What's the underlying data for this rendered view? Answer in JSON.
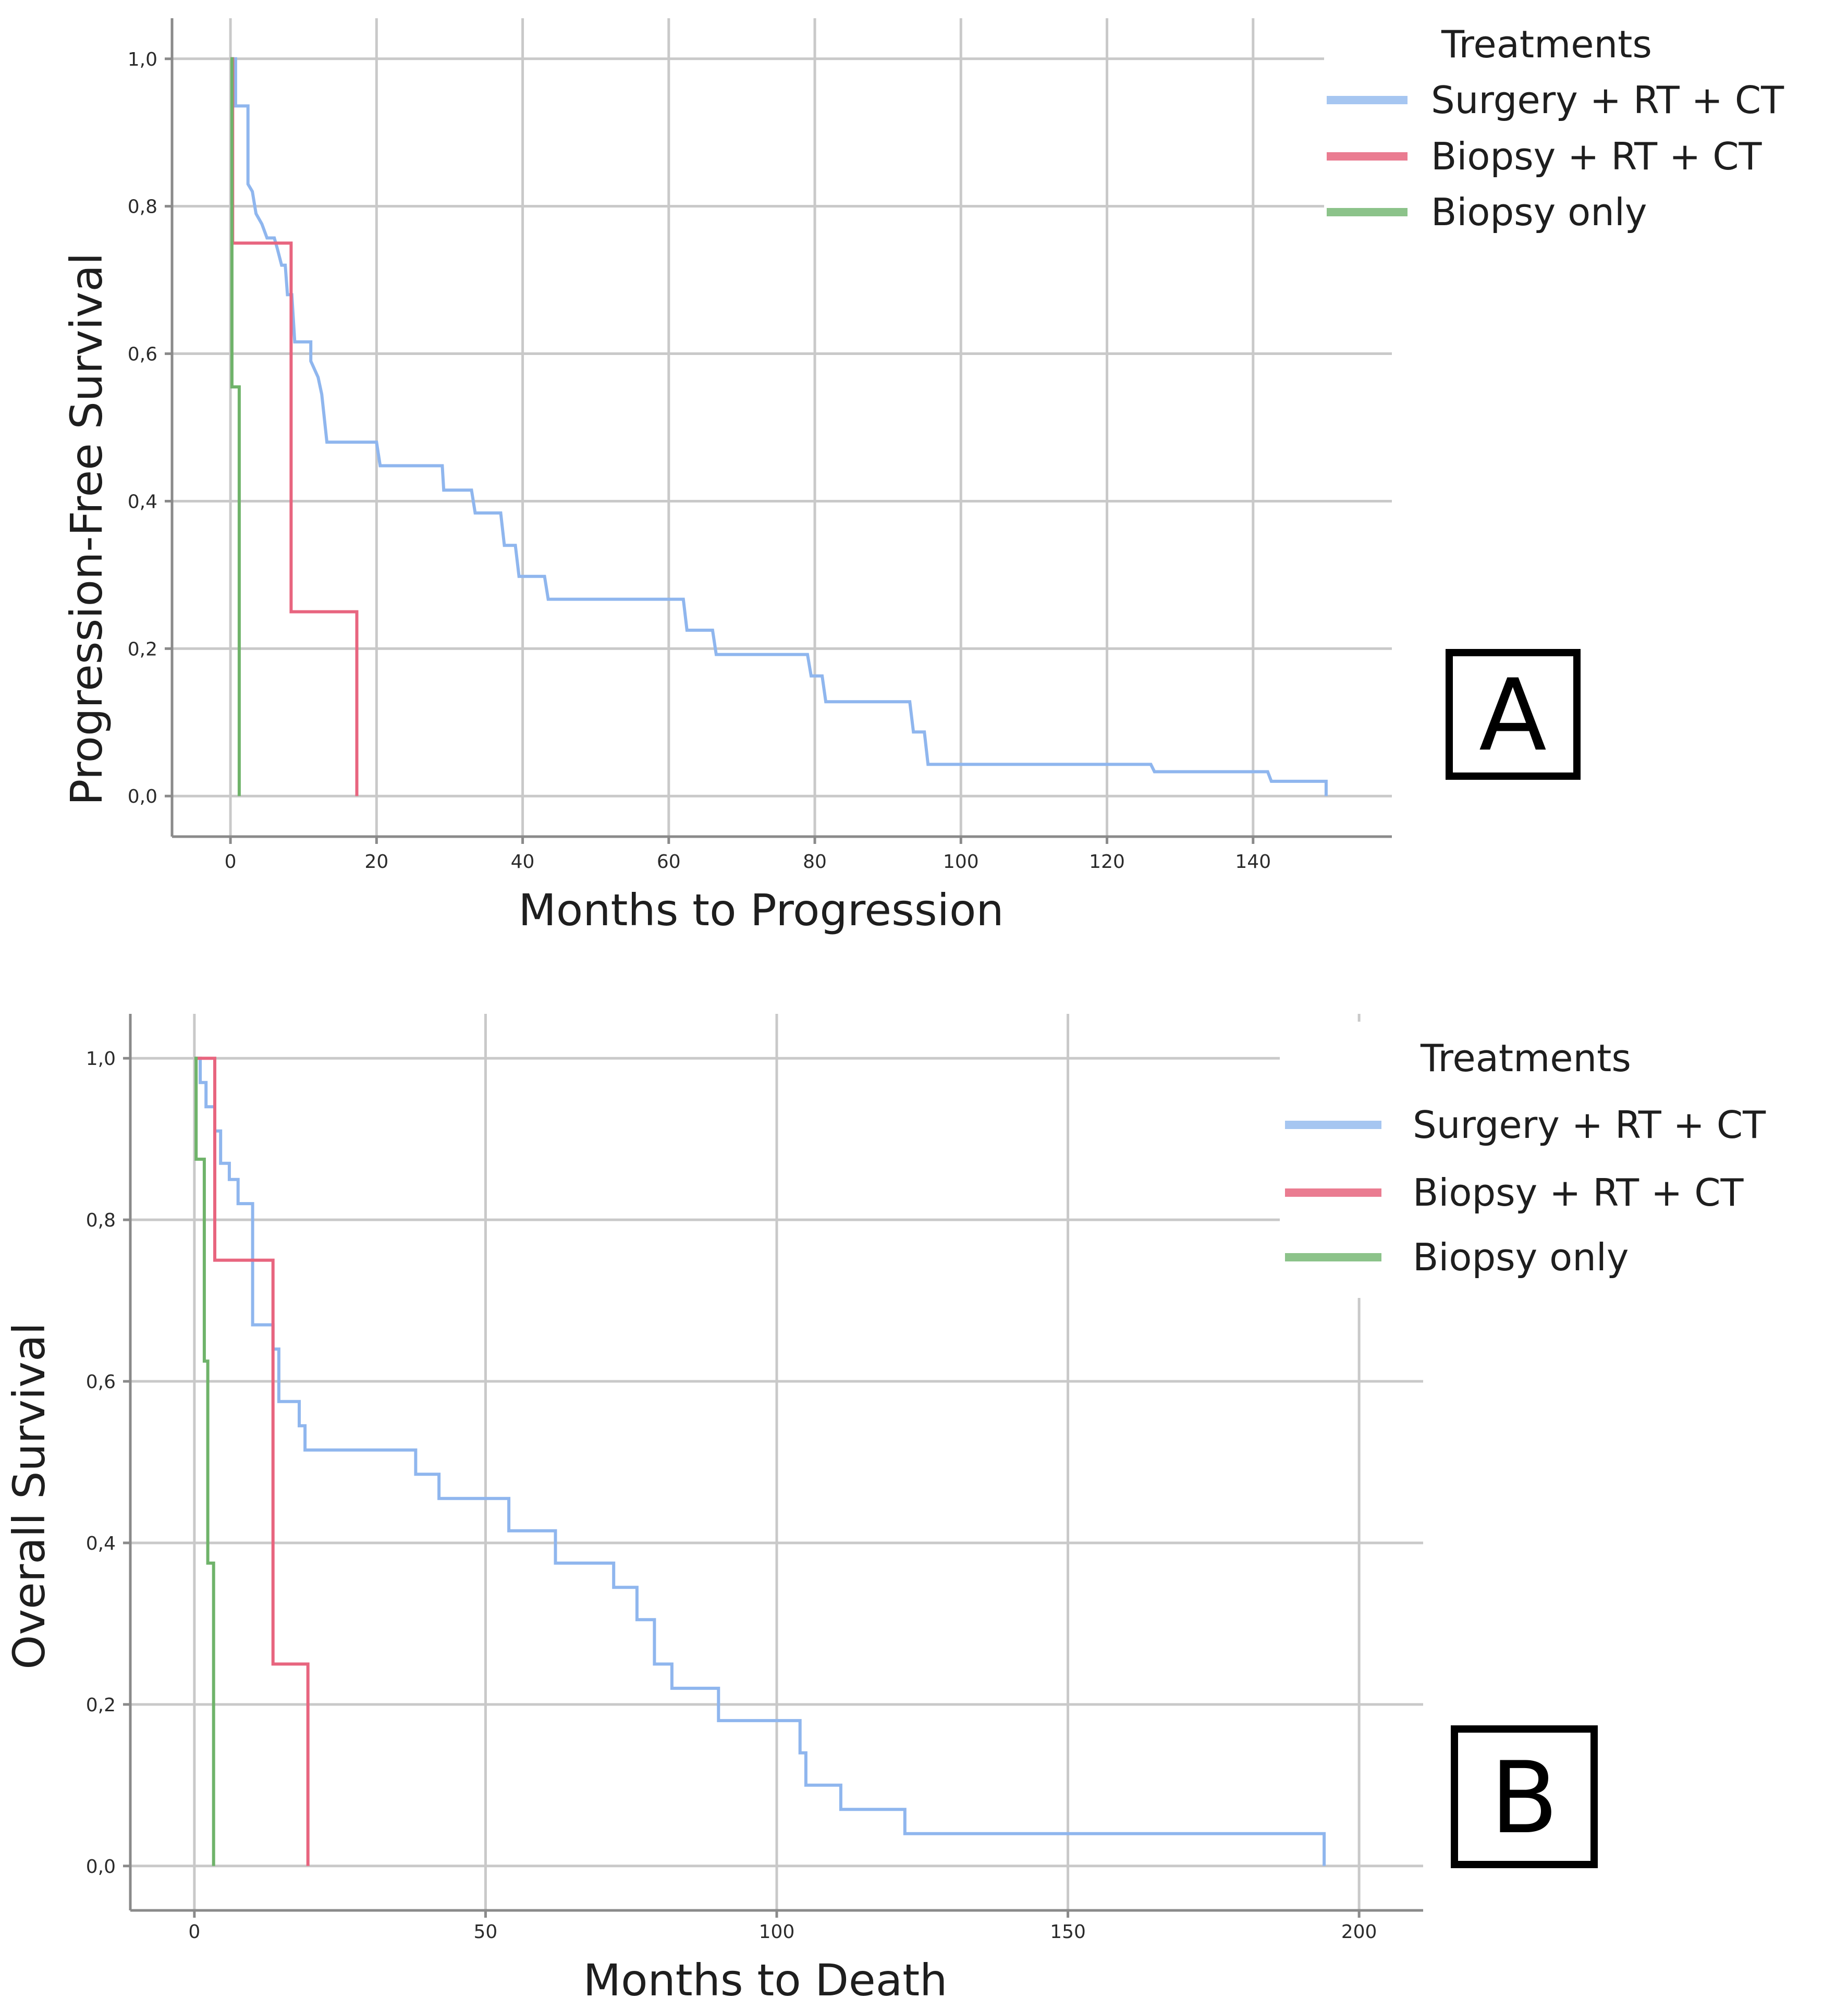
{
  "chart_data": [
    {
      "type": "line",
      "step": true,
      "panel_label": "A",
      "xlabel": "Months to Progression",
      "ylabel": "Progression-Free Survival",
      "xlim": [
        -8,
        159
      ],
      "ylim": [
        -0.055,
        1.055
      ],
      "x_ticks": [
        0,
        20,
        40,
        60,
        80,
        100,
        120,
        140
      ],
      "x_tick_labels": [
        "0",
        "20",
        "40",
        "60",
        "80",
        "100",
        "120",
        "140"
      ],
      "y_ticks": [
        0,
        0.2,
        0.4,
        0.6,
        0.8,
        1.0
      ],
      "y_tick_labels": [
        "0,0",
        "0,2",
        "0,4",
        "0,6",
        "0,8",
        "1,0"
      ],
      "x_grid": [
        0,
        20,
        40,
        60,
        80,
        100,
        120,
        140
      ],
      "y_grid": [
        0,
        0.2,
        0.4,
        0.6,
        0.8,
        1.0
      ],
      "legend": {
        "title": "Treatments",
        "placement": "top-right",
        "entries": [
          "Surgery + RT + CT",
          "Biopsy + RT + CT",
          "Biopsy only"
        ]
      },
      "series": [
        {
          "name": "Surgery + RT + CT",
          "color": "#8fb6ee",
          "points": [
            [
              0,
              1.0
            ],
            [
              0.7,
              1.0
            ],
            [
              0.7,
              0.936
            ],
            [
              2.4,
              0.936
            ],
            [
              2.4,
              0.83
            ],
            [
              3,
              0.82
            ],
            [
              3.5,
              0.79
            ],
            [
              4.3,
              0.776
            ],
            [
              5,
              0.757
            ],
            [
              6,
              0.757
            ],
            [
              6.4,
              0.743
            ],
            [
              7,
              0.72
            ],
            [
              7.5,
              0.72
            ],
            [
              7.8,
              0.68
            ],
            [
              8.4,
              0.68
            ],
            [
              8.8,
              0.616
            ],
            [
              11,
              0.616
            ],
            [
              11,
              0.59
            ],
            [
              12,
              0.568
            ],
            [
              12.5,
              0.545
            ],
            [
              13.2,
              0.48
            ],
            [
              20,
              0.48
            ],
            [
              20.5,
              0.448
            ],
            [
              29,
              0.448
            ],
            [
              29.2,
              0.415
            ],
            [
              33,
              0.415
            ],
            [
              33.5,
              0.384
            ],
            [
              37,
              0.384
            ],
            [
              37.5,
              0.34
            ],
            [
              39,
              0.34
            ],
            [
              39.5,
              0.298
            ],
            [
              43,
              0.298
            ],
            [
              43.5,
              0.267
            ],
            [
              62,
              0.267
            ],
            [
              62.5,
              0.225
            ],
            [
              66,
              0.225
            ],
            [
              66.5,
              0.192
            ],
            [
              79,
              0.192
            ],
            [
              79.5,
              0.163
            ],
            [
              81,
              0.163
            ],
            [
              81.5,
              0.128
            ],
            [
              93,
              0.128
            ],
            [
              93.5,
              0.087
            ],
            [
              95,
              0.087
            ],
            [
              95.5,
              0.043
            ],
            [
              126,
              0.043
            ],
            [
              126.5,
              0.033
            ],
            [
              142,
              0.033
            ],
            [
              142.5,
              0.02
            ],
            [
              150,
              0.02
            ],
            [
              150,
              0.0
            ]
          ]
        },
        {
          "name": "Biopsy + RT + CT",
          "color": "#e8657f",
          "points": [
            [
              0,
              1.0
            ],
            [
              0.3,
              1.0
            ],
            [
              0.3,
              0.75
            ],
            [
              8.3,
              0.75
            ],
            [
              8.3,
              0.25
            ],
            [
              17.3,
              0.25
            ],
            [
              17.3,
              0.0
            ]
          ]
        },
        {
          "name": "Biopsy only",
          "color": "#6fb36a",
          "points": [
            [
              0,
              1.0
            ],
            [
              0.2,
              1.0
            ],
            [
              0.2,
              0.555
            ],
            [
              1.2,
              0.555
            ],
            [
              1.2,
              0.0
            ]
          ]
        }
      ]
    },
    {
      "type": "line",
      "step": true,
      "panel_label": "B",
      "xlabel": "Months to Death",
      "ylabel": "Overall Survival",
      "xlim": [
        -11,
        211
      ],
      "ylim": [
        -0.055,
        1.055
      ],
      "x_ticks": [
        0,
        50,
        100,
        150,
        200
      ],
      "x_tick_labels": [
        "0",
        "50",
        "100",
        "150",
        "200"
      ],
      "y_ticks": [
        0,
        0.2,
        0.4,
        0.6,
        0.8,
        1.0
      ],
      "y_tick_labels": [
        "0,0",
        "0,2",
        "0,4",
        "0,6",
        "0,8",
        "1,0"
      ],
      "x_grid": [
        0,
        50,
        100,
        150,
        200
      ],
      "y_grid": [
        0,
        0.2,
        0.4,
        0.6,
        0.8,
        1.0
      ],
      "legend": {
        "title": "Treatments",
        "placement": "top-right",
        "entries": [
          "Surgery + RT + CT",
          "Biopsy + RT + CT",
          "Biopsy only"
        ]
      },
      "series": [
        {
          "name": "Surgery + RT + CT",
          "color": "#8fb6ee",
          "points": [
            [
              0,
              1.0
            ],
            [
              1,
              1.0
            ],
            [
              1,
              0.97
            ],
            [
              2,
              0.97
            ],
            [
              2,
              0.94
            ],
            [
              3.5,
              0.94
            ],
            [
              3.5,
              0.91
            ],
            [
              4.5,
              0.91
            ],
            [
              4.5,
              0.87
            ],
            [
              6,
              0.87
            ],
            [
              6,
              0.85
            ],
            [
              7.5,
              0.85
            ],
            [
              7.5,
              0.82
            ],
            [
              10,
              0.82
            ],
            [
              10,
              0.67
            ],
            [
              13.5,
              0.67
            ],
            [
              13.5,
              0.64
            ],
            [
              14.5,
              0.64
            ],
            [
              14.5,
              0.575
            ],
            [
              18,
              0.575
            ],
            [
              18,
              0.545
            ],
            [
              19,
              0.545
            ],
            [
              19,
              0.515
            ],
            [
              38,
              0.515
            ],
            [
              38,
              0.485
            ],
            [
              42,
              0.485
            ],
            [
              42,
              0.455
            ],
            [
              54,
              0.455
            ],
            [
              54,
              0.415
            ],
            [
              62,
              0.415
            ],
            [
              62,
              0.375
            ],
            [
              72,
              0.375
            ],
            [
              72,
              0.345
            ],
            [
              76,
              0.345
            ],
            [
              76,
              0.305
            ],
            [
              79,
              0.305
            ],
            [
              79,
              0.25
            ],
            [
              82,
              0.25
            ],
            [
              82,
              0.22
            ],
            [
              90,
              0.22
            ],
            [
              90,
              0.18
            ],
            [
              104,
              0.18
            ],
            [
              104,
              0.14
            ],
            [
              105,
              0.14
            ],
            [
              105,
              0.1
            ],
            [
              111,
              0.1
            ],
            [
              111,
              0.07
            ],
            [
              122,
              0.07
            ],
            [
              122,
              0.04
            ],
            [
              194,
              0.04
            ],
            [
              194,
              0.0
            ]
          ]
        },
        {
          "name": "Biopsy + RT + CT",
          "color": "#e8657f",
          "points": [
            [
              0,
              1.0
            ],
            [
              3.5,
              1.0
            ],
            [
              3.5,
              0.75
            ],
            [
              13.5,
              0.75
            ],
            [
              13.5,
              0.25
            ],
            [
              19.5,
              0.25
            ],
            [
              19.5,
              0.0
            ]
          ]
        },
        {
          "name": "Biopsy only",
          "color": "#6fb36a",
          "points": [
            [
              0,
              1.0
            ],
            [
              0.3,
              1.0
            ],
            [
              0.3,
              0.875
            ],
            [
              1.7,
              0.875
            ],
            [
              1.7,
              0.625
            ],
            [
              2.3,
              0.625
            ],
            [
              2.3,
              0.375
            ],
            [
              3.3,
              0.375
            ],
            [
              3.3,
              0.0
            ]
          ]
        }
      ]
    }
  ]
}
